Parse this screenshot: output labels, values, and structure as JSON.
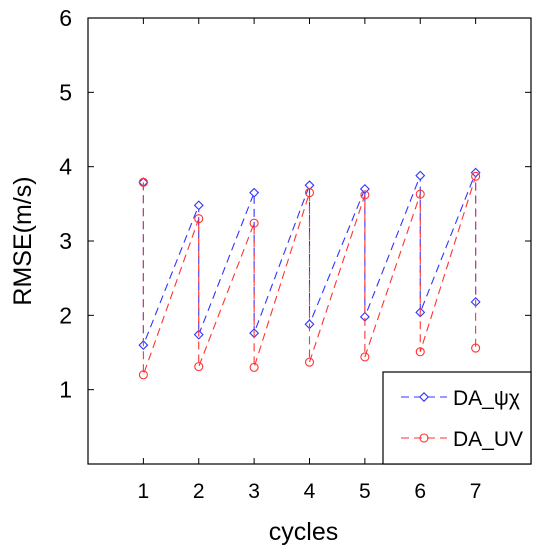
{
  "chart_data": {
    "type": "line",
    "xlabel": "cycles",
    "ylabel": "RMSE(m/s)",
    "xlim": [
      0,
      8
    ],
    "ylim": [
      0,
      6
    ],
    "xticks": [
      1,
      2,
      3,
      4,
      5,
      6,
      7
    ],
    "xtick_labels": [
      "1",
      "2",
      "3",
      "4",
      "5",
      "6",
      "7"
    ],
    "yticks": [
      1,
      2,
      3,
      4,
      5,
      6
    ],
    "ytick_labels": [
      "1",
      "2",
      "3",
      "4",
      "5",
      "6"
    ],
    "grid": false,
    "legend_position": "bottom-right",
    "series": [
      {
        "name": "DA_ψχ",
        "color": "#3333ff",
        "marker": "diamond",
        "linestyle": "dashed",
        "x": [
          1,
          1,
          2,
          2,
          3,
          3,
          4,
          4,
          5,
          5,
          6,
          6,
          7,
          7
        ],
        "y": [
          3.79,
          1.6,
          3.48,
          1.74,
          3.65,
          1.76,
          3.75,
          1.88,
          3.7,
          1.98,
          3.88,
          2.04,
          3.92,
          2.18
        ]
      },
      {
        "name": "DA_UV",
        "color": "#ff3333",
        "marker": "circle",
        "linestyle": "dashed",
        "x": [
          1,
          1,
          2,
          2,
          3,
          3,
          4,
          4,
          5,
          5,
          6,
          6,
          7,
          7
        ],
        "y": [
          3.79,
          1.2,
          3.3,
          1.31,
          3.24,
          1.3,
          3.65,
          1.37,
          3.62,
          1.44,
          3.63,
          1.51,
          3.87,
          1.56
        ]
      }
    ]
  }
}
